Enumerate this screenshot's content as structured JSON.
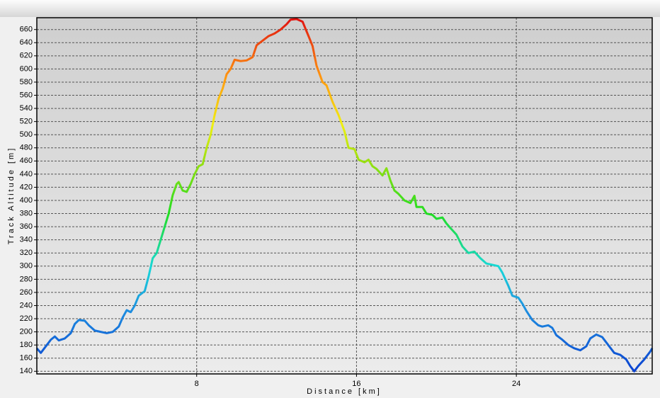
{
  "chart_data": {
    "type": "line",
    "xlabel": "Distance [km]",
    "ylabel": "Track Altitude [m]",
    "x": [
      0,
      0.2,
      0.5,
      0.7,
      0.9,
      1.1,
      1.4,
      1.7,
      1.9,
      2.1,
      2.4,
      2.6,
      2.9,
      3.2,
      3.5,
      3.8,
      4.1,
      4.3,
      4.5,
      4.7,
      4.9,
      5.1,
      5.4,
      5.6,
      5.8,
      6.0,
      6.2,
      6.4,
      6.6,
      6.8,
      7.0,
      7.1,
      7.3,
      7.5,
      7.7,
      7.9,
      8.1,
      8.3,
      8.5,
      8.7,
      8.9,
      9.1,
      9.3,
      9.5,
      9.7,
      9.9,
      10.2,
      10.5,
      10.8,
      11.0,
      11.3,
      11.6,
      11.9,
      12.2,
      12.5,
      12.7,
      13.0,
      13.3,
      13.6,
      13.8,
      14.0,
      14.3,
      14.5,
      14.8,
      15.1,
      15.4,
      15.6,
      15.9,
      16.1,
      16.4,
      16.6,
      16.8,
      17.0,
      17.3,
      17.5,
      17.7,
      17.9,
      18.1,
      18.4,
      18.7,
      18.9,
      19.0,
      19.3,
      19.5,
      19.8,
      20.0,
      20.3,
      20.5,
      20.7,
      21.0,
      21.3,
      21.6,
      21.9,
      22.2,
      22.5,
      22.8,
      23.1,
      23.3,
      23.6,
      23.8,
      24.1,
      24.3,
      24.5,
      24.8,
      25.1,
      25.3,
      25.6,
      25.8,
      26.0,
      26.3,
      26.6,
      26.9,
      27.2,
      27.5,
      27.7,
      28.0,
      28.3,
      28.6,
      28.9,
      29.2,
      29.5,
      29.7,
      29.9,
      30.1,
      30.4,
      30.7,
      30.8
    ],
    "values": [
      175,
      168,
      180,
      188,
      193,
      187,
      190,
      198,
      212,
      218,
      217,
      210,
      202,
      200,
      198,
      200,
      208,
      222,
      233,
      230,
      240,
      255,
      262,
      285,
      312,
      320,
      340,
      360,
      380,
      408,
      425,
      428,
      415,
      413,
      425,
      440,
      452,
      455,
      480,
      500,
      530,
      555,
      570,
      592,
      600,
      614,
      612,
      613,
      618,
      636,
      643,
      650,
      654,
      660,
      668,
      675,
      676,
      672,
      650,
      635,
      605,
      580,
      575,
      550,
      530,
      505,
      480,
      478,
      462,
      458,
      462,
      452,
      448,
      438,
      449,
      430,
      415,
      410,
      400,
      396,
      407,
      390,
      390,
      380,
      378,
      372,
      374,
      365,
      358,
      348,
      330,
      320,
      322,
      312,
      304,
      302,
      300,
      290,
      270,
      255,
      252,
      243,
      232,
      218,
      210,
      208,
      210,
      206,
      195,
      188,
      180,
      175,
      172,
      178,
      190,
      196,
      192,
      180,
      168,
      165,
      158,
      148,
      140,
      148,
      158,
      170,
      175
    ],
    "xlim": [
      0,
      30.8
    ],
    "xticks": [
      8,
      16,
      24
    ],
    "ylim": [
      136,
      678
    ],
    "yticks": [
      140,
      160,
      180,
      200,
      220,
      240,
      260,
      280,
      300,
      320,
      340,
      360,
      380,
      400,
      420,
      440,
      460,
      480,
      500,
      520,
      540,
      560,
      580,
      600,
      620,
      640,
      660
    ],
    "grid": true
  }
}
